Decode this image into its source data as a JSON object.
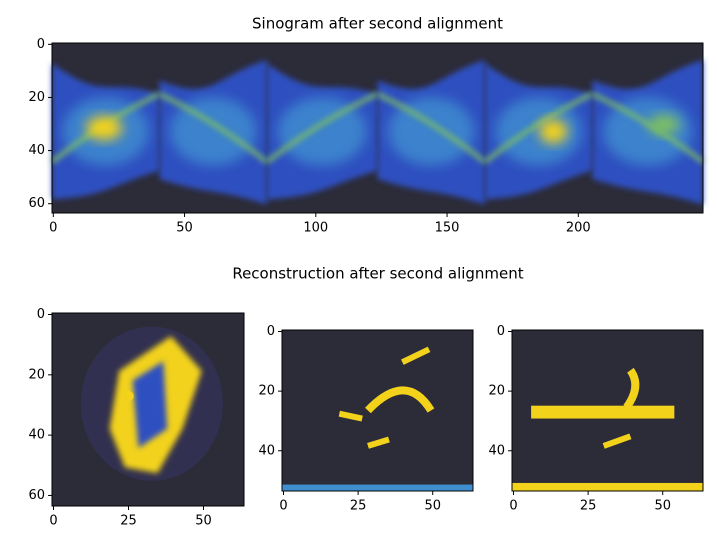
{
  "suptitle": "Reconstruction after  second alignment",
  "chart_data": [
    {
      "type": "image",
      "title": "Sinogram after second alignment",
      "xlim": [
        -0.5,
        247.5
      ],
      "ylim": [
        63.5,
        -0.5
      ],
      "xticks": [
        0,
        50,
        100,
        150,
        200
      ],
      "yticks": [
        0,
        20,
        40,
        60
      ]
    },
    {
      "type": "image",
      "xlim": [
        -0.5,
        63.5
      ],
      "ylim": [
        63.5,
        -0.5
      ],
      "xticks": [
        0,
        25,
        50
      ],
      "yticks": [
        0,
        20,
        40,
        60
      ]
    },
    {
      "type": "image",
      "xlim": [
        -0.5,
        63.5
      ],
      "ylim": [
        53.5,
        -0.5
      ],
      "xticks": [
        0,
        25,
        50
      ],
      "yticks": [
        0,
        20,
        40
      ]
    },
    {
      "type": "image",
      "xlim": [
        -0.5,
        63.5
      ],
      "ylim": [
        53.5,
        -0.5
      ],
      "xticks": [
        0,
        25,
        50
      ],
      "yticks": [
        0,
        20,
        40
      ]
    }
  ]
}
